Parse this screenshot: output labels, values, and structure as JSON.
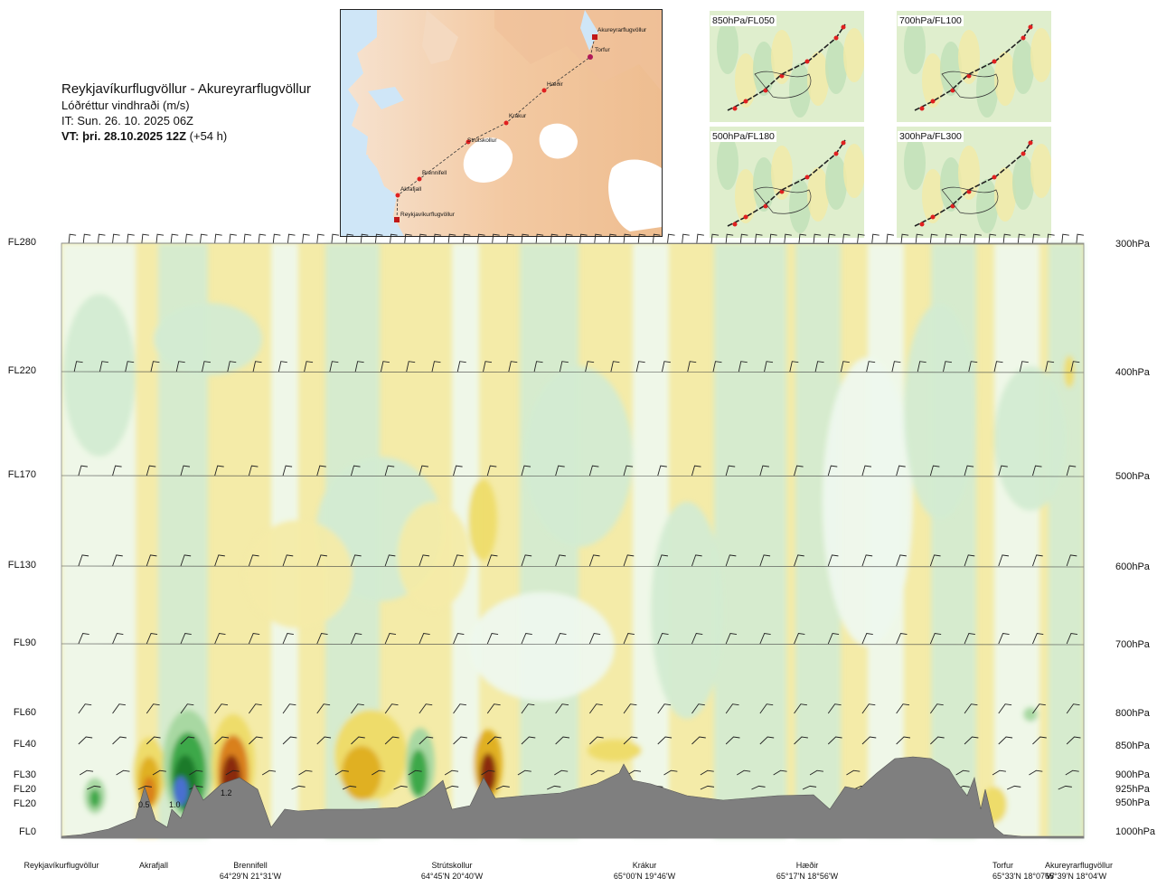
{
  "header": {
    "route_title": "Reykjavíkurflugvöllur - Akureyrarflugvöllur",
    "parameter": "Lóðréttur vindhraði (m/s)",
    "issue_time": "IT: Sun. 26. 10. 2025 06Z",
    "valid_time_bold": "VT: þri. 28.10.2025 12Z",
    "valid_time_offset": " (+54 h)"
  },
  "route_map": {
    "points": [
      {
        "name": "Akureyrarflugvöllur"
      },
      {
        "name": "Torfur"
      },
      {
        "name": "Hæðir"
      },
      {
        "name": "Krákur"
      },
      {
        "name": "Strútskollur"
      },
      {
        "name": "Brennifell"
      },
      {
        "name": "Akrafjall"
      },
      {
        "name": "Reykjavíkurflugvöllur"
      }
    ]
  },
  "level_maps": [
    {
      "label": "850hPa/FL050"
    },
    {
      "label": "700hPa/FL100"
    },
    {
      "label": "500hPa/FL180"
    },
    {
      "label": "300hPa/FL300"
    }
  ],
  "flight_levels": [
    "FL280",
    "FL220",
    "FL170",
    "FL130",
    "FL90",
    "FL60",
    "FL40",
    "FL30",
    "FL20",
    "FL20",
    "FL0"
  ],
  "pressure_levels": [
    "300hPa",
    "400hPa",
    "500hPa",
    "600hPa",
    "700hPa",
    "800hPa",
    "850hPa",
    "900hPa",
    "925hPa",
    "950hPa",
    "1000hPa"
  ],
  "value_labels": [
    "0.5",
    "1.0",
    "1.2"
  ],
  "waypoints": [
    {
      "name": "Reykjavíkurflugvöllur",
      "coord": ""
    },
    {
      "name": "Akrafjall",
      "coord": ""
    },
    {
      "name": "Brennifell",
      "coord": "64°29'N 21°31'W"
    },
    {
      "name": "Strútskollur",
      "coord": "64°45'N 20°40'W"
    },
    {
      "name": "Krákur",
      "coord": "65°00'N 19°46'W"
    },
    {
      "name": "Hæðir",
      "coord": "65°17'N 18°56'W"
    },
    {
      "name": "Torfur",
      "coord": "65°33'N 18°07'W"
    },
    {
      "name": "Akureyrarflugvöllur",
      "coord": "65°39'N 18°04'W"
    }
  ],
  "colors": {
    "sink_light": "#f4eba8",
    "sink_med": "#eedc6a",
    "sink_strong": "#e0b020",
    "sink_orange": "#d9801e",
    "sink_brown": "#8a2a0e",
    "lift_pale": "#eef8ee",
    "lift_light": "#d3ebd2",
    "lift_med": "#a8d8a2",
    "lift_strong": "#3ea84a",
    "lift_dark": "#1c7a2c",
    "lift_blue": "#4a6fd0",
    "terrain": "#7f7f7f",
    "route_marker": "#e02020"
  }
}
